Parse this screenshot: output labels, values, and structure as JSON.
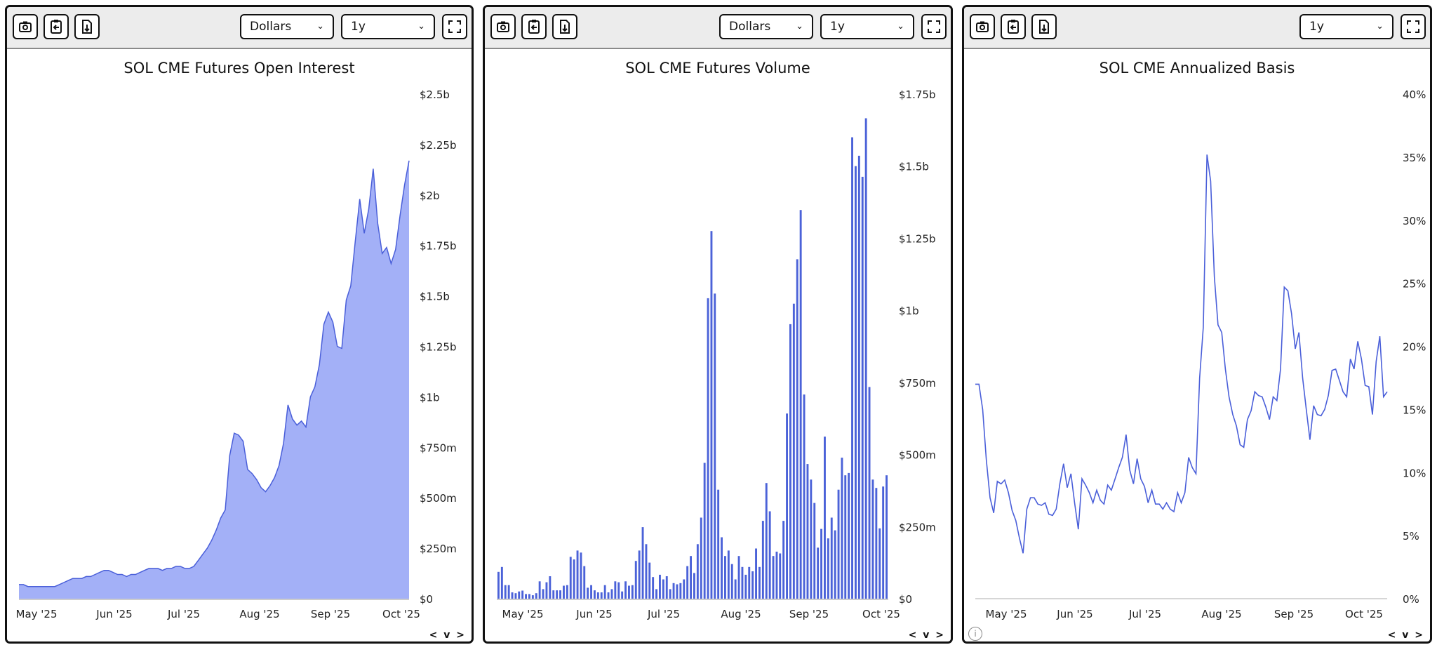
{
  "toolbar": {
    "unit_select": "Dollars",
    "range_select": "1y"
  },
  "icons": [
    "camera-icon",
    "clipboard-copy-icon",
    "file-download-icon",
    "fullscreen-icon",
    "chevron-down-icon",
    "info-icon"
  ],
  "nav_label": "< v >",
  "colors": {
    "line": "#4a5fd9",
    "area_fill": "#a3b0f7",
    "bar": "#4b62d8",
    "grid_zero": "#c8c8c8"
  },
  "chart_data": [
    {
      "type": "area",
      "title": "SOL CME Futures Open Interest",
      "x_ticks": [
        "May '25",
        "Jun '25",
        "Jul '25",
        "Aug '25",
        "Sep '25",
        "Oct '25"
      ],
      "y_ticks": [
        "$0",
        "$250m",
        "$500m",
        "$750m",
        "$1b",
        "$1.25b",
        "$1.5b",
        "$1.75b",
        "$2b",
        "$2.25b",
        "$2.5b"
      ],
      "ylim": [
        0,
        2.5
      ],
      "y_unit": "USD billions",
      "values": [
        0.07,
        0.07,
        0.06,
        0.06,
        0.06,
        0.06,
        0.06,
        0.06,
        0.06,
        0.07,
        0.08,
        0.09,
        0.1,
        0.1,
        0.1,
        0.11,
        0.11,
        0.12,
        0.13,
        0.14,
        0.14,
        0.13,
        0.12,
        0.12,
        0.11,
        0.12,
        0.12,
        0.13,
        0.14,
        0.15,
        0.15,
        0.15,
        0.14,
        0.15,
        0.15,
        0.16,
        0.16,
        0.15,
        0.15,
        0.16,
        0.19,
        0.22,
        0.25,
        0.29,
        0.34,
        0.4,
        0.44,
        0.71,
        0.82,
        0.81,
        0.78,
        0.64,
        0.62,
        0.59,
        0.55,
        0.53,
        0.56,
        0.6,
        0.66,
        0.77,
        0.96,
        0.89,
        0.86,
        0.88,
        0.85,
        1.0,
        1.05,
        1.16,
        1.36,
        1.42,
        1.37,
        1.25,
        1.24,
        1.48,
        1.55,
        1.77,
        1.98,
        1.81,
        1.93,
        2.13,
        1.86,
        1.71,
        1.74,
        1.66,
        1.73,
        1.9,
        2.05,
        2.17
      ]
    },
    {
      "type": "bar",
      "title": "SOL CME Futures Volume",
      "x_ticks": [
        "May '25",
        "Jun '25",
        "Jul '25",
        "Aug '25",
        "Sep '25",
        "Oct '25"
      ],
      "y_ticks": [
        "$0",
        "$250m",
        "$500m",
        "$750m",
        "$1b",
        "$1.25b",
        "$1.5b",
        "$1.75b"
      ],
      "ylim": [
        0,
        1.75
      ],
      "y_unit": "USD billions",
      "values": [
        0.093,
        0.11,
        0.047,
        0.047,
        0.022,
        0.019,
        0.025,
        0.028,
        0.016,
        0.016,
        0.012,
        0.019,
        0.06,
        0.033,
        0.057,
        0.078,
        0.029,
        0.029,
        0.029,
        0.045,
        0.047,
        0.145,
        0.136,
        0.167,
        0.16,
        0.113,
        0.038,
        0.047,
        0.029,
        0.022,
        0.022,
        0.047,
        0.022,
        0.033,
        0.06,
        0.057,
        0.025,
        0.06,
        0.045,
        0.047,
        0.131,
        0.167,
        0.248,
        0.189,
        0.125,
        0.075,
        0.033,
        0.083,
        0.067,
        0.078,
        0.033,
        0.054,
        0.05,
        0.054,
        0.067,
        0.113,
        0.148,
        0.089,
        0.189,
        0.281,
        0.471,
        1.042,
        1.275,
        1.058,
        0.378,
        0.213,
        0.148,
        0.167,
        0.12,
        0.067,
        0.148,
        0.11,
        0.083,
        0.11,
        0.095,
        0.174,
        0.11,
        0.27,
        0.401,
        0.303,
        0.148,
        0.163,
        0.157,
        0.27,
        0.642,
        0.952,
        1.023,
        1.177,
        1.348,
        0.708,
        0.467,
        0.413,
        0.332,
        0.177,
        0.242,
        0.562,
        0.209,
        0.281,
        0.237,
        0.378,
        0.489,
        0.428,
        0.436,
        1.6,
        1.5,
        1.536,
        1.463,
        1.666,
        0.734,
        0.413,
        0.384,
        0.244,
        0.389,
        0.428
      ]
    },
    {
      "type": "line",
      "title": "SOL CME Annualized Basis",
      "x_ticks": [
        "May '25",
        "Jun '25",
        "Jul '25",
        "Aug '25",
        "Sep '25",
        "Oct '25"
      ],
      "y_ticks": [
        "0%",
        "5%",
        "10%",
        "15%",
        "20%",
        "25%",
        "30%",
        "35%",
        "40%"
      ],
      "ylim": [
        0,
        40
      ],
      "y_unit": "percent",
      "values": [
        17.0,
        17.0,
        15,
        11,
        8,
        6.8,
        9.3,
        9.1,
        9.4,
        8.4,
        7,
        6.2,
        4.8,
        3.6,
        7.1,
        8,
        8,
        7.5,
        7.4,
        7.6,
        6.7,
        6.6,
        7.1,
        9.1,
        10.7,
        8.8,
        9.9,
        7.6,
        5.5,
        9.5,
        9,
        8.4,
        7.6,
        8.6,
        7.8,
        7.5,
        9,
        8.6,
        9.5,
        10.4,
        11.2,
        13,
        10.2,
        9.1,
        11.1,
        9.5,
        8.9,
        7.6,
        8.6,
        7.5,
        7.5,
        7.1,
        7.6,
        7.1,
        6.9,
        8.4,
        7.6,
        8.4,
        11.2,
        10.4,
        9.9,
        17.5,
        21.5,
        35.2,
        33.1,
        25.5,
        21.7,
        21.1,
        18.2,
        16,
        14.6,
        13.7,
        12.2,
        12,
        14.2,
        14.9,
        16.4,
        16.1,
        16,
        15.2,
        14.2,
        16,
        15.7,
        18.2,
        24.7,
        24.4,
        22.6,
        19.8,
        21.1,
        17.5,
        15,
        12.6,
        15.3,
        14.6,
        14.5,
        15,
        16.1,
        18.1,
        18.2,
        17.3,
        16.4,
        16,
        19,
        18.2,
        20.4,
        19,
        16.9,
        16.8,
        14.6,
        18.8,
        20.8,
        16,
        16.4
      ]
    }
  ]
}
